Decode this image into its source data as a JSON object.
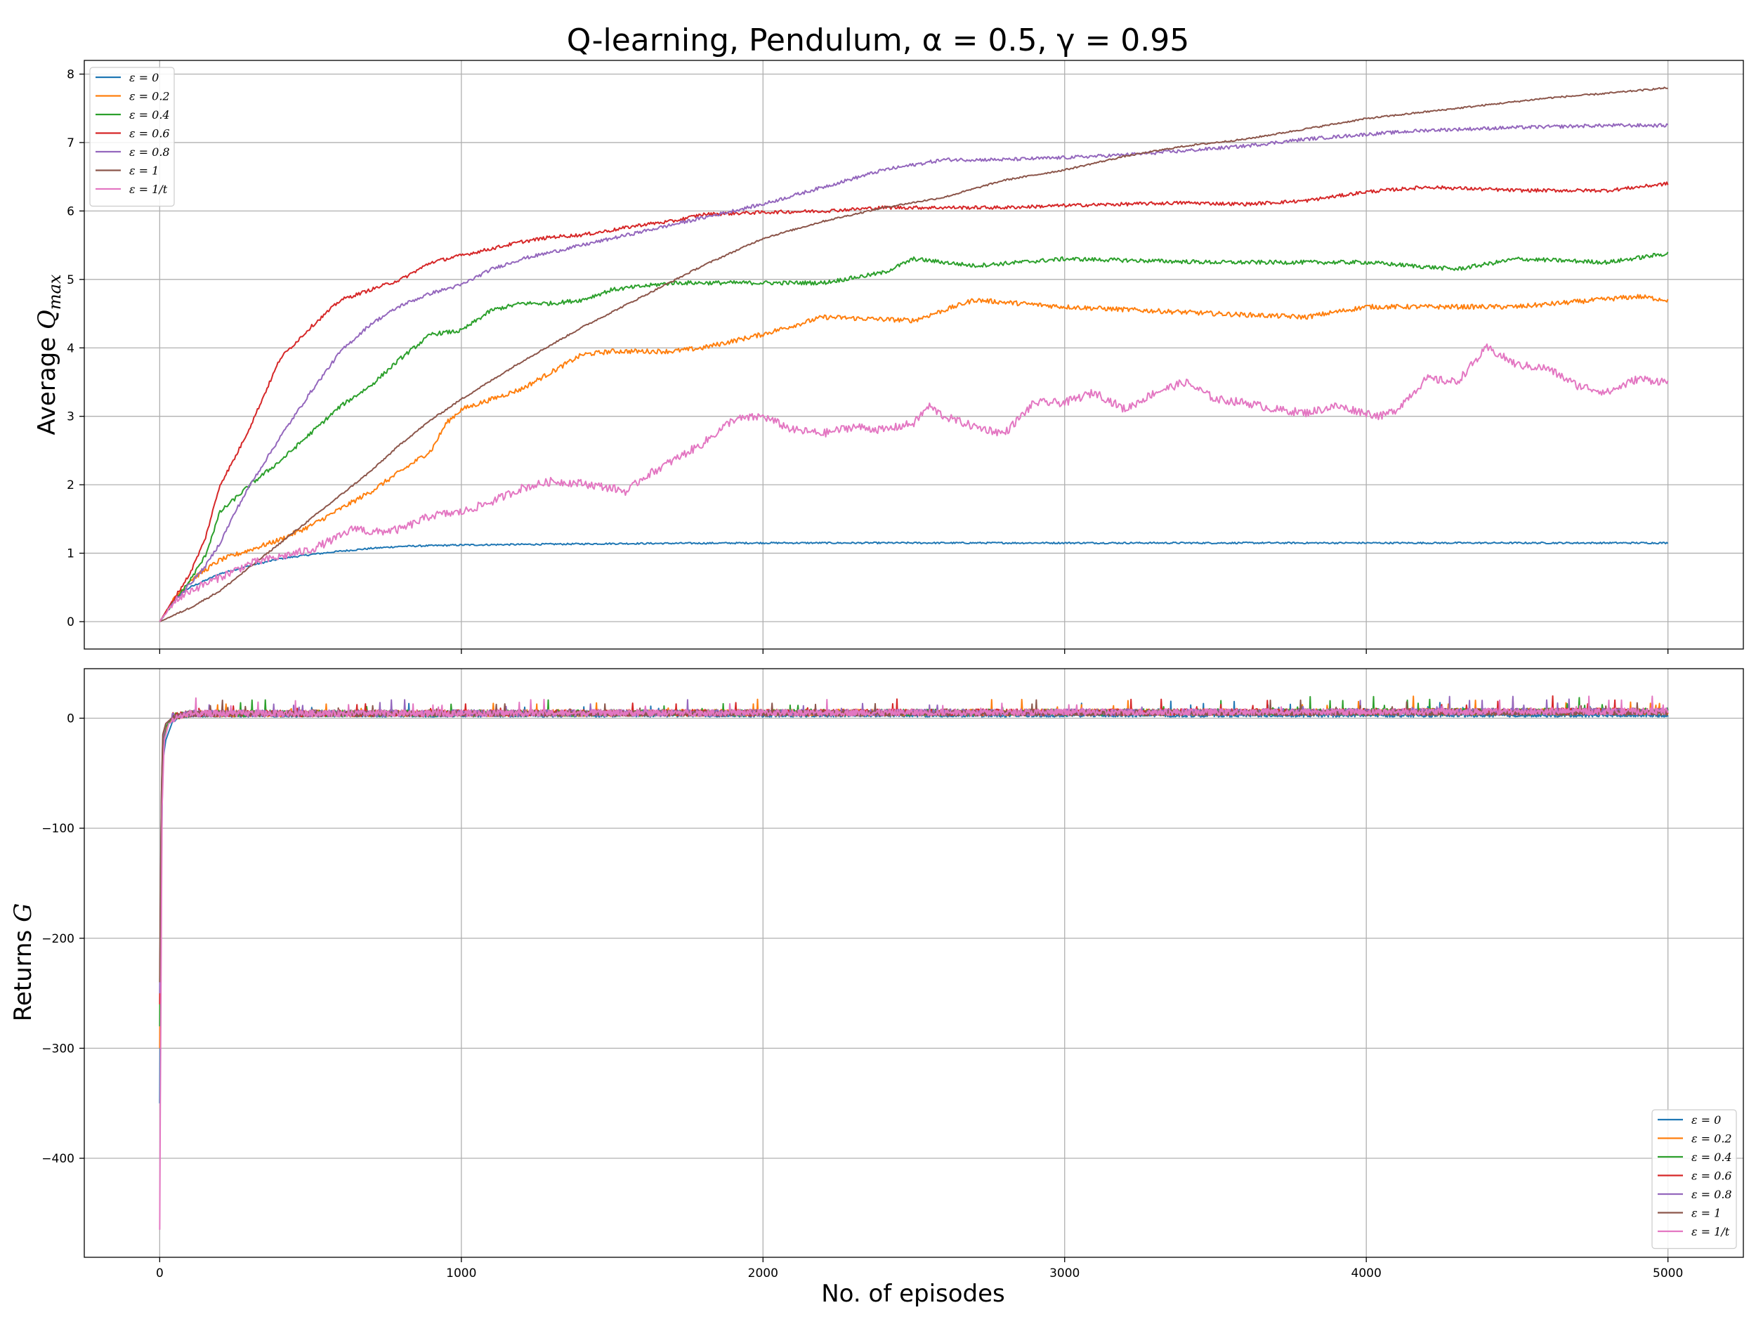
{
  "chart_data": [
    {
      "type": "line",
      "title": "Q-learning, Pendulum, α = 0.5, γ = 0.95",
      "xlabel": "",
      "ylabel": "Average Q_max",
      "xlim": [
        -250,
        5250
      ],
      "ylim": [
        -0.4,
        8.2
      ],
      "x_ticks": [
        "0",
        "1000",
        "2000",
        "3000",
        "4000",
        "5000"
      ],
      "y_ticks": [
        "0",
        "1",
        "2",
        "3",
        "4",
        "5",
        "6",
        "7",
        "8"
      ],
      "grid": true,
      "legend_position": "upper-left",
      "series": [
        {
          "name": "ε = 0",
          "color": "#1f77b4",
          "noise": 0.012,
          "x": [
            0,
            50,
            100,
            200,
            300,
            400,
            500,
            600,
            700,
            800,
            1000,
            1500,
            2000,
            2500,
            3000,
            3500,
            4000,
            4500,
            5000
          ],
          "y": [
            0,
            0.35,
            0.5,
            0.7,
            0.82,
            0.92,
            0.98,
            1.03,
            1.07,
            1.1,
            1.12,
            1.14,
            1.15,
            1.15,
            1.15,
            1.15,
            1.15,
            1.15,
            1.15
          ]
        },
        {
          "name": "ε = 0.2",
          "color": "#ff7f0e",
          "noise": 0.035,
          "x": [
            0,
            50,
            100,
            200,
            300,
            400,
            500,
            600,
            700,
            800,
            900,
            950,
            1000,
            1100,
            1200,
            1300,
            1400,
            1500,
            1700,
            1800,
            2000,
            2200,
            2500,
            2700,
            3000,
            3500,
            3800,
            4000,
            4500,
            4900,
            5000
          ],
          "y": [
            0,
            0.35,
            0.6,
            0.9,
            1.05,
            1.2,
            1.4,
            1.65,
            1.9,
            2.2,
            2.5,
            2.9,
            3.1,
            3.25,
            3.4,
            3.65,
            3.9,
            3.95,
            3.95,
            4.0,
            4.2,
            4.45,
            4.4,
            4.7,
            4.6,
            4.5,
            4.45,
            4.6,
            4.6,
            4.75,
            4.7
          ]
        },
        {
          "name": "ε = 0.4",
          "color": "#2ca02c",
          "noise": 0.03,
          "x": [
            0,
            50,
            100,
            150,
            200,
            300,
            400,
            500,
            600,
            700,
            800,
            900,
            1000,
            1100,
            1200,
            1300,
            1400,
            1500,
            1700,
            1800,
            1900,
            2000,
            2200,
            2400,
            2500,
            2700,
            3000,
            3500,
            4000,
            4300,
            4500,
            4800,
            5000
          ],
          "y": [
            0,
            0.3,
            0.6,
            0.95,
            1.6,
            2.0,
            2.35,
            2.75,
            3.15,
            3.45,
            3.85,
            4.2,
            4.25,
            4.55,
            4.65,
            4.65,
            4.7,
            4.85,
            4.95,
            4.95,
            4.95,
            4.95,
            4.95,
            5.1,
            5.3,
            5.2,
            5.3,
            5.25,
            5.25,
            5.15,
            5.3,
            5.25,
            5.38
          ]
        },
        {
          "name": "ε = 0.6",
          "color": "#d62728",
          "noise": 0.025,
          "x": [
            0,
            50,
            100,
            150,
            200,
            250,
            300,
            350,
            400,
            500,
            600,
            700,
            800,
            900,
            1000,
            1100,
            1200,
            1300,
            1400,
            1500,
            1600,
            1700,
            1800,
            2000,
            2200,
            2400,
            2600,
            2800,
            3000,
            3200,
            3400,
            3600,
            3800,
            4000,
            4200,
            4500,
            4800,
            5000
          ],
          "y": [
            0,
            0.35,
            0.7,
            1.2,
            2.0,
            2.4,
            2.85,
            3.35,
            3.85,
            4.3,
            4.7,
            4.85,
            5.0,
            5.25,
            5.35,
            5.45,
            5.55,
            5.62,
            5.65,
            5.72,
            5.8,
            5.85,
            5.95,
            5.98,
            6.0,
            6.05,
            6.05,
            6.05,
            6.08,
            6.1,
            6.12,
            6.1,
            6.15,
            6.28,
            6.35,
            6.3,
            6.3,
            6.4
          ]
        },
        {
          "name": "ε = 0.8",
          "color": "#9467bd",
          "noise": 0.025,
          "x": [
            0,
            50,
            100,
            150,
            200,
            250,
            300,
            400,
            500,
            600,
            700,
            800,
            900,
            1000,
            1100,
            1200,
            1400,
            1600,
            1800,
            1900,
            2000,
            2200,
            2400,
            2600,
            2800,
            3000,
            3200,
            3400,
            3600,
            3800,
            4000,
            4200,
            4500,
            4800,
            5000
          ],
          "y": [
            0,
            0.3,
            0.55,
            0.8,
            1.15,
            1.6,
            2.0,
            2.7,
            3.35,
            3.95,
            4.35,
            4.62,
            4.8,
            4.92,
            5.15,
            5.3,
            5.5,
            5.7,
            5.9,
            6.0,
            6.1,
            6.35,
            6.6,
            6.75,
            6.75,
            6.78,
            6.82,
            6.88,
            6.95,
            7.05,
            7.12,
            7.18,
            7.22,
            7.25,
            7.25
          ]
        },
        {
          "name": "ε = 1",
          "color": "#8c564b",
          "noise": 0.012,
          "x": [
            0,
            100,
            200,
            300,
            400,
            500,
            600,
            700,
            800,
            900,
            1000,
            1200,
            1400,
            1600,
            1800,
            2000,
            2200,
            2400,
            2600,
            2800,
            3000,
            3200,
            3400,
            3600,
            3800,
            4000,
            4200,
            4400,
            4600,
            4800,
            5000
          ],
          "y": [
            0,
            0.2,
            0.45,
            0.8,
            1.15,
            1.5,
            1.85,
            2.2,
            2.6,
            2.95,
            3.25,
            3.8,
            4.3,
            4.75,
            5.2,
            5.6,
            5.85,
            6.05,
            6.2,
            6.45,
            6.6,
            6.8,
            6.95,
            7.05,
            7.2,
            7.35,
            7.45,
            7.55,
            7.65,
            7.72,
            7.8
          ]
        },
        {
          "name": "ε = 1/t",
          "color": "#e377c2",
          "noise": 0.06,
          "x": [
            0,
            50,
            100,
            200,
            300,
            400,
            500,
            600,
            650,
            700,
            800,
            900,
            1000,
            1100,
            1200,
            1300,
            1400,
            1500,
            1550,
            1600,
            1700,
            1800,
            1900,
            2000,
            2100,
            2200,
            2300,
            2400,
            2500,
            2550,
            2600,
            2700,
            2800,
            2900,
            3000,
            3100,
            3200,
            3300,
            3400,
            3500,
            3600,
            3700,
            3800,
            3900,
            4000,
            4050,
            4100,
            4200,
            4300,
            4400,
            4500,
            4600,
            4700,
            4800,
            4900,
            5000
          ],
          "y": [
            0,
            0.3,
            0.45,
            0.65,
            0.85,
            0.95,
            1.05,
            1.25,
            1.38,
            1.3,
            1.35,
            1.55,
            1.6,
            1.75,
            1.95,
            2.05,
            2.02,
            1.95,
            1.9,
            2.1,
            2.35,
            2.6,
            2.95,
            3.0,
            2.8,
            2.75,
            2.85,
            2.8,
            2.9,
            3.15,
            3.0,
            2.85,
            2.75,
            3.2,
            3.2,
            3.35,
            3.1,
            3.35,
            3.5,
            3.25,
            3.2,
            3.1,
            3.05,
            3.15,
            3.05,
            3.0,
            3.1,
            3.55,
            3.5,
            4.0,
            3.75,
            3.7,
            3.45,
            3.35,
            3.55,
            3.5
          ]
        }
      ]
    },
    {
      "type": "line",
      "title": "",
      "xlabel": "No. of episodes",
      "ylabel": "Returns G",
      "xlim": [
        -250,
        5250
      ],
      "ylim": [
        -490,
        45
      ],
      "x_ticks": [
        "0",
        "1000",
        "2000",
        "3000",
        "4000",
        "5000"
      ],
      "y_ticks": [
        "0",
        "−100",
        "−200",
        "−300",
        "−400"
      ],
      "grid": true,
      "legend_position": "lower-right",
      "series": [
        {
          "name": "ε = 0",
          "color": "#1f77b4",
          "x": [
            0,
            5,
            10,
            20,
            40,
            60,
            100,
            5000
          ],
          "y": [
            -350,
            -150,
            -40,
            -20,
            -5,
            0,
            2,
            2
          ],
          "noise": 3
        },
        {
          "name": "ε = 0.2",
          "color": "#ff7f0e",
          "x": [
            0,
            5,
            10,
            20,
            40,
            100,
            5000
          ],
          "y": [
            -300,
            -120,
            -30,
            -10,
            0,
            3,
            5
          ],
          "noise": 6
        },
        {
          "name": "ε = 0.4",
          "color": "#2ca02c",
          "x": [
            0,
            5,
            10,
            20,
            40,
            100,
            5000
          ],
          "y": [
            -280,
            -100,
            -25,
            -8,
            0,
            3,
            5
          ],
          "noise": 6
        },
        {
          "name": "ε = 0.6",
          "color": "#d62728",
          "x": [
            0,
            5,
            10,
            20,
            40,
            100,
            5000
          ],
          "y": [
            -260,
            -90,
            -20,
            -5,
            0,
            3,
            5
          ],
          "noise": 6
        },
        {
          "name": "ε = 0.8",
          "color": "#9467bd",
          "x": [
            0,
            5,
            10,
            20,
            40,
            100,
            5000
          ],
          "y": [
            -250,
            -80,
            -20,
            -5,
            0,
            3,
            5
          ],
          "noise": 6
        },
        {
          "name": "ε = 1",
          "color": "#8c564b",
          "x": [
            0,
            5,
            10,
            20,
            40,
            100,
            5000
          ],
          "y": [
            -240,
            -80,
            -15,
            -5,
            0,
            3,
            4
          ],
          "noise": 5
        },
        {
          "name": "ε = 1/t",
          "color": "#e377c2",
          "x": [
            0,
            3,
            8,
            15,
            30,
            60,
            100,
            5000
          ],
          "y": [
            -465,
            -300,
            -80,
            -20,
            -5,
            0,
            3,
            5
          ],
          "noise": 6
        }
      ]
    }
  ]
}
